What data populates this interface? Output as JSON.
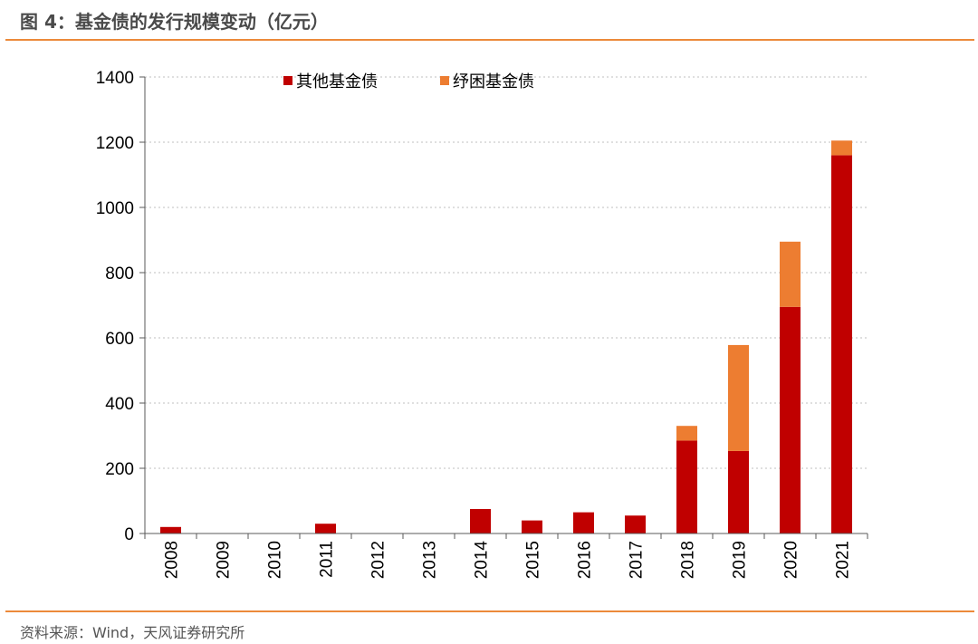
{
  "header": {
    "title": "图 4：基金债的发行规模变动（亿元）"
  },
  "footer": {
    "source": "资料来源：Wind，天风证券研究所"
  },
  "colors": {
    "accent_rule": "#ec8a3a",
    "series_other": "#c00000",
    "series_relief": "#ed7d31",
    "grid": "#bfbfbf",
    "axis": "#595959"
  },
  "chart_data": {
    "type": "bar",
    "stacked": true,
    "title": "",
    "xlabel": "",
    "ylabel": "",
    "categories": [
      "2008",
      "2009",
      "2010",
      "2011",
      "2012",
      "2013",
      "2014",
      "2015",
      "2016",
      "2017",
      "2018",
      "2019",
      "2020",
      "2021"
    ],
    "series": [
      {
        "name": "其他基金债",
        "color": "#c00000",
        "values": [
          20,
          0,
          0,
          30,
          0,
          0,
          75,
          40,
          65,
          55,
          285,
          253,
          695,
          1160
        ]
      },
      {
        "name": "纾困基金债",
        "color": "#ed7d31",
        "values": [
          0,
          0,
          0,
          0,
          0,
          0,
          0,
          0,
          0,
          0,
          45,
          325,
          200,
          45
        ]
      }
    ],
    "ylim": [
      0,
      1400
    ],
    "yticks": [
      0,
      200,
      400,
      600,
      800,
      1000,
      1200,
      1400
    ],
    "grid": true,
    "legend_position": "top"
  }
}
